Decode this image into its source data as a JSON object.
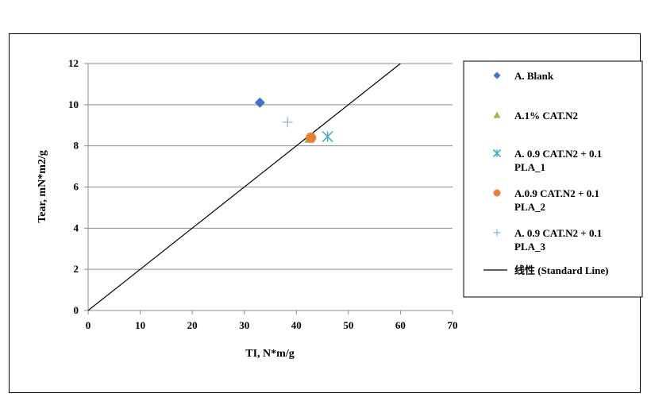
{
  "chart_data": {
    "type": "scatter",
    "xlabel": "TI, N*m/g",
    "ylabel": "Tear, mN*m2/g",
    "xlim": [
      0,
      70
    ],
    "ylim": [
      0,
      12
    ],
    "xticks": [
      0,
      10,
      20,
      30,
      40,
      50,
      60,
      70
    ],
    "yticks": [
      0,
      2,
      4,
      6,
      8,
      10,
      12
    ],
    "grid": "horizontal",
    "legend_position": "right",
    "series": [
      {
        "name": "A. Blank",
        "marker": "diamond",
        "color": "#4472c4",
        "points": [
          {
            "x": 33,
            "y": 10.1
          }
        ]
      },
      {
        "name": "A.1% CAT.N2",
        "marker": "triangle",
        "color": "#9bbb59",
        "points": [
          {
            "x": 42.5,
            "y": 8.35
          }
        ]
      },
      {
        "name": "A. 0.9 CAT.N2 + 0.1 PLA_1",
        "marker": "star",
        "color": "#4bacc6",
        "points": [
          {
            "x": 46,
            "y": 8.45
          }
        ]
      },
      {
        "name": "A.0.9 CAT.N2  + 0.1 PLA_2",
        "marker": "circle",
        "color": "#e5823a",
        "points": [
          {
            "x": 42.8,
            "y": 8.4
          }
        ]
      },
      {
        "name": "A. 0.9 CAT.N2 +  0.1 PLA_3",
        "marker": "plus",
        "color": "#8eb4e3",
        "points": [
          {
            "x": 38.3,
            "y": 9.15
          }
        ]
      }
    ],
    "lines": [
      {
        "name": "线性 (Standard Line)",
        "color": "#000000",
        "points": [
          {
            "x": 0,
            "y": 0
          },
          {
            "x": 60,
            "y": 12
          }
        ]
      }
    ],
    "legend": [
      {
        "marker": "diamond",
        "color": "#4472c4",
        "lines": [
          "A. Blank"
        ]
      },
      {
        "marker": "triangle",
        "color": "#9bbb59",
        "lines": [
          "A.1% CAT.N2"
        ]
      },
      {
        "marker": "star",
        "color": "#4bacc6",
        "lines": [
          "A. 0.9 CAT.N2 + 0.1",
          "PLA_1"
        ]
      },
      {
        "marker": "circle",
        "color": "#e5823a",
        "lines": [
          "A.0.9 CAT.N2  + 0.1",
          "PLA_2"
        ]
      },
      {
        "marker": "plus",
        "color": "#8eb4e3",
        "lines": [
          "A. 0.9 CAT.N2 +  0.1",
          "PLA_3"
        ]
      },
      {
        "marker": "line",
        "color": "#000000",
        "lines": [
          "线性 (Standard Line)"
        ]
      }
    ]
  }
}
